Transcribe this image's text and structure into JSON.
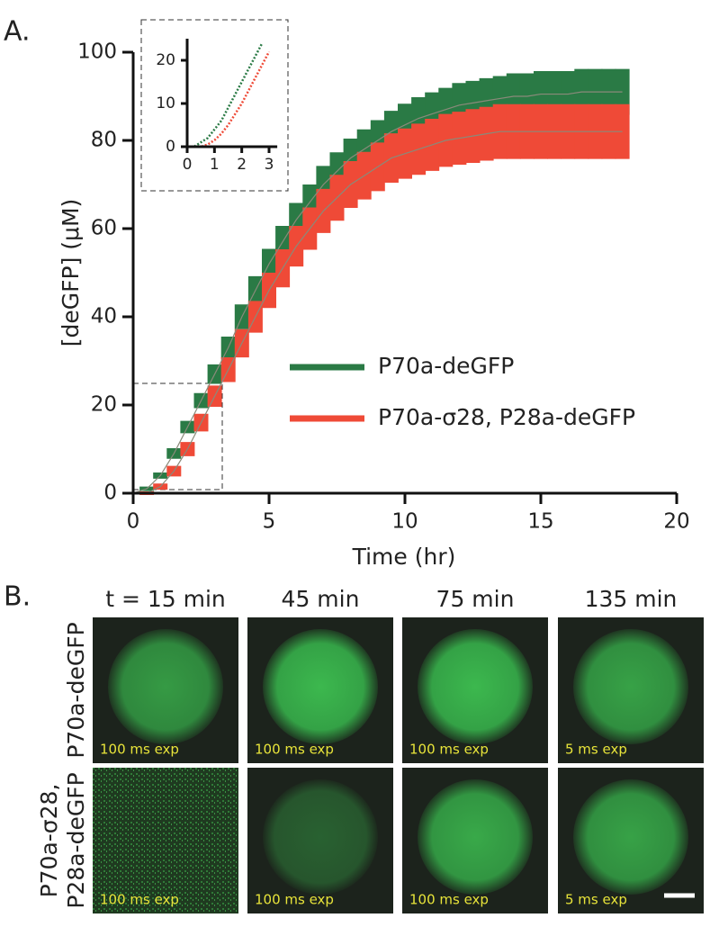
{
  "chart_data": [
    {
      "type": "errorband",
      "panel_label": "A.",
      "xlabel": "Time (hr)",
      "ylabel": "[deGFP] (μM)",
      "xlim": [
        0,
        20
      ],
      "ylim": [
        0,
        100
      ],
      "xticks": [
        0,
        5,
        10,
        15,
        20
      ],
      "yticks": [
        0,
        20,
        40,
        60,
        80,
        100
      ],
      "x": [
        0,
        0.5,
        1,
        1.5,
        2,
        2.5,
        3,
        3.5,
        4,
        4.5,
        5,
        5.5,
        6,
        6.5,
        7,
        7.5,
        8,
        8.5,
        9,
        9.5,
        10,
        10.5,
        11,
        11.5,
        12,
        12.5,
        13,
        13.5,
        14,
        14.5,
        15,
        15.5,
        16,
        16.5,
        17,
        17.5,
        18
      ],
      "series": [
        {
          "name": "P70a-deGFP",
          "color": "#2a7a45",
          "values": [
            0,
            1,
            4,
            9,
            15,
            21,
            27,
            33,
            40,
            46,
            52,
            57,
            62,
            66,
            70,
            73,
            76,
            78,
            80,
            82,
            83.5,
            85,
            86,
            87,
            88,
            88.5,
            89,
            89.5,
            90,
            90,
            90.5,
            90.5,
            90.5,
            91,
            91,
            91,
            91
          ],
          "errors": [
            0,
            0.3,
            0.5,
            1,
            1.2,
            1.5,
            2,
            2.3,
            2.6,
            3,
            3.2,
            3.4,
            3.6,
            3.8,
            4,
            4.1,
            4.2,
            4.3,
            4.4,
            4.5,
            4.6,
            4.6,
            4.7,
            4.7,
            4.8,
            4.8,
            4.9,
            4.9,
            5,
            5,
            5,
            5,
            5,
            5,
            5,
            5,
            5
          ]
        },
        {
          "name": "P70a-σ28, P28a-deGFP",
          "color": "#ef4a37",
          "values": [
            0,
            0,
            1.5,
            5,
            10,
            16,
            22,
            28,
            34,
            40,
            46,
            51,
            56,
            60,
            64,
            67,
            70,
            72,
            74,
            76,
            77,
            78,
            79,
            80,
            80.5,
            81,
            81.5,
            82,
            82,
            82,
            82,
            82,
            82,
            82,
            82,
            82,
            82
          ],
          "errors": [
            0,
            0.2,
            0.5,
            1,
            1.4,
            1.8,
            2.2,
            2.6,
            3,
            3.4,
            3.8,
            4.1,
            4.4,
            4.6,
            4.8,
            5,
            5.1,
            5.2,
            5.3,
            5.4,
            5.5,
            5.6,
            5.7,
            5.8,
            5.8,
            5.9,
            5.9,
            6,
            6,
            6,
            6,
            6,
            6,
            6,
            6,
            6,
            6
          ]
        }
      ]
    },
    {
      "type": "line",
      "xlim": [
        0,
        3.3
      ],
      "ylim": [
        0,
        25
      ],
      "xticks": [
        0,
        1,
        2,
        3
      ],
      "yticks": [
        0,
        10,
        20
      ],
      "x": [
        0,
        0.25,
        0.5,
        0.75,
        1,
        1.25,
        1.5,
        1.75,
        2,
        2.25,
        2.5,
        2.75,
        3
      ],
      "series": [
        {
          "name": "P70a-deGFP",
          "color": "#2a7a45",
          "values": [
            0,
            0,
            1,
            2,
            4,
            6,
            9,
            12,
            15,
            18,
            21,
            24,
            null
          ]
        },
        {
          "name": "P70a-σ28, P28a-deGFP",
          "color": "#ef4a37",
          "values": [
            0,
            0,
            0,
            0.5,
            1.5,
            3,
            5,
            7.5,
            10,
            13,
            16,
            19,
            22
          ]
        }
      ]
    }
  ],
  "panel_b": {
    "panel_label": "B.",
    "columns": [
      "t = 15 min",
      "45 min",
      "75 min",
      "135 min"
    ],
    "rows": [
      [
        "P70a-deGFP"
      ],
      [
        "P70a-σ28,",
        "P28a-deGFP"
      ]
    ],
    "exposures": [
      [
        "100 ms exp",
        "100 ms exp",
        "100 ms exp",
        "5 ms exp"
      ],
      [
        "100 ms exp",
        "100 ms exp",
        "100 ms exp",
        "5 ms exp"
      ]
    ]
  }
}
